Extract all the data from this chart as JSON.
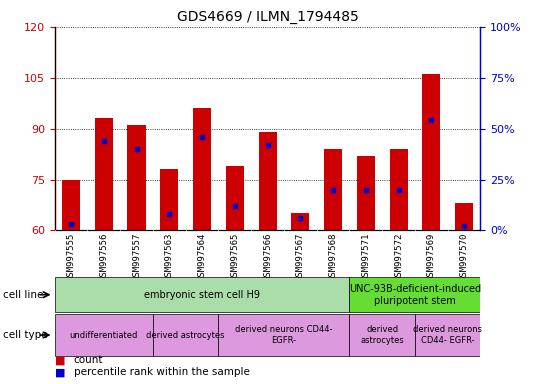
{
  "title": "GDS4669 / ILMN_1794485",
  "samples": [
    "GSM997555",
    "GSM997556",
    "GSM997557",
    "GSM997563",
    "GSM997564",
    "GSM997565",
    "GSM997566",
    "GSM997567",
    "GSM997568",
    "GSM997571",
    "GSM997572",
    "GSM997569",
    "GSM997570"
  ],
  "counts": [
    75,
    93,
    91,
    78,
    96,
    79,
    89,
    65,
    84,
    82,
    84,
    106,
    68
  ],
  "percentiles": [
    3,
    44,
    40,
    8,
    46,
    12,
    42,
    6,
    20,
    20,
    20,
    54,
    2
  ],
  "ylim_left": [
    60,
    120
  ],
  "ylim_right": [
    0,
    100
  ],
  "yticks_left": [
    60,
    75,
    90,
    105,
    120
  ],
  "yticks_right": [
    0,
    25,
    50,
    75,
    100
  ],
  "bar_color": "#cc0000",
  "dot_color": "#0000cc",
  "bar_width": 0.55,
  "cell_line_rows": [
    {
      "text": "embryonic stem cell H9",
      "start": 0,
      "end": 9,
      "color": "#aaeea a"
    },
    {
      "text": "UNC-93B-deficient-induced\npluripotent stem",
      "start": 9,
      "end": 13,
      "color": "#66dd44"
    }
  ],
  "cell_type_rows": [
    {
      "text": "undifferentiated",
      "start": 0,
      "end": 3,
      "color": "#ee99ee"
    },
    {
      "text": "derived astrocytes",
      "start": 3,
      "end": 5,
      "color": "#ee99ee"
    },
    {
      "text": "derived neurons CD44-\nEGFR-",
      "start": 5,
      "end": 9,
      "color": "#ee99ee"
    },
    {
      "text": "derived\nastrocytes",
      "start": 9,
      "end": 11,
      "color": "#ee99ee"
    },
    {
      "text": "derived neurons\nCD44- EGFR-",
      "start": 11,
      "end": 13,
      "color": "#ee99ee"
    }
  ],
  "tick_color_left": "#cc0000",
  "tick_color_right": "#0000cc",
  "grid_color": "#000000",
  "xtick_bg": "#cccccc",
  "cell_line_color_1": "#aaddaa",
  "cell_line_color_2": "#66dd33",
  "cell_type_color": "#dd99dd"
}
